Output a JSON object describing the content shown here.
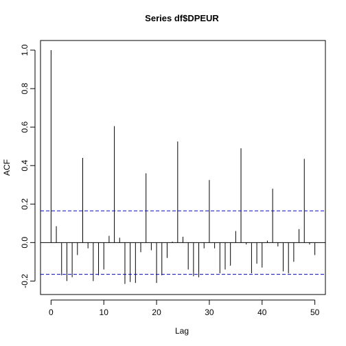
{
  "chart_data": {
    "type": "bar",
    "title": "Series  df$DPEUR",
    "xlabel": "Lag",
    "ylabel": "ACF",
    "xlim": [
      -2,
      52
    ],
    "ylim": [
      -0.27,
      1.05
    ],
    "xticks": [
      0,
      10,
      20,
      30,
      40,
      50
    ],
    "yticks": [
      -0.2,
      0.0,
      0.2,
      0.4,
      0.6,
      0.8,
      1.0
    ],
    "ytick_labels": [
      "-0.2",
      "0.0",
      "0.2",
      "0.4",
      "0.6",
      "0.8",
      "1.0"
    ],
    "x": [
      0,
      1,
      2,
      3,
      4,
      5,
      6,
      7,
      8,
      9,
      10,
      11,
      12,
      13,
      14,
      15,
      16,
      17,
      18,
      19,
      20,
      21,
      22,
      23,
      24,
      25,
      26,
      27,
      28,
      29,
      30,
      31,
      32,
      33,
      34,
      35,
      36,
      37,
      38,
      39,
      40,
      41,
      42,
      43,
      44,
      45,
      46,
      47,
      48,
      49,
      50
    ],
    "values": [
      1.0,
      0.085,
      -0.17,
      -0.2,
      -0.18,
      -0.065,
      0.44,
      -0.03,
      -0.2,
      -0.17,
      -0.14,
      0.035,
      0.605,
      0.025,
      -0.215,
      -0.205,
      -0.21,
      -0.05,
      0.36,
      -0.04,
      -0.21,
      -0.17,
      -0.08,
      0.005,
      0.525,
      0.03,
      -0.14,
      -0.175,
      -0.18,
      -0.03,
      0.325,
      -0.03,
      -0.16,
      -0.14,
      -0.12,
      0.06,
      0.49,
      -0.01,
      -0.16,
      -0.11,
      -0.13,
      0.01,
      0.28,
      -0.02,
      -0.15,
      -0.16,
      -0.1,
      0.07,
      0.435,
      -0.01,
      -0.065
    ],
    "confidence_bound": 0.165,
    "bar_color": "#000000",
    "bound_color": "#0000cc"
  }
}
